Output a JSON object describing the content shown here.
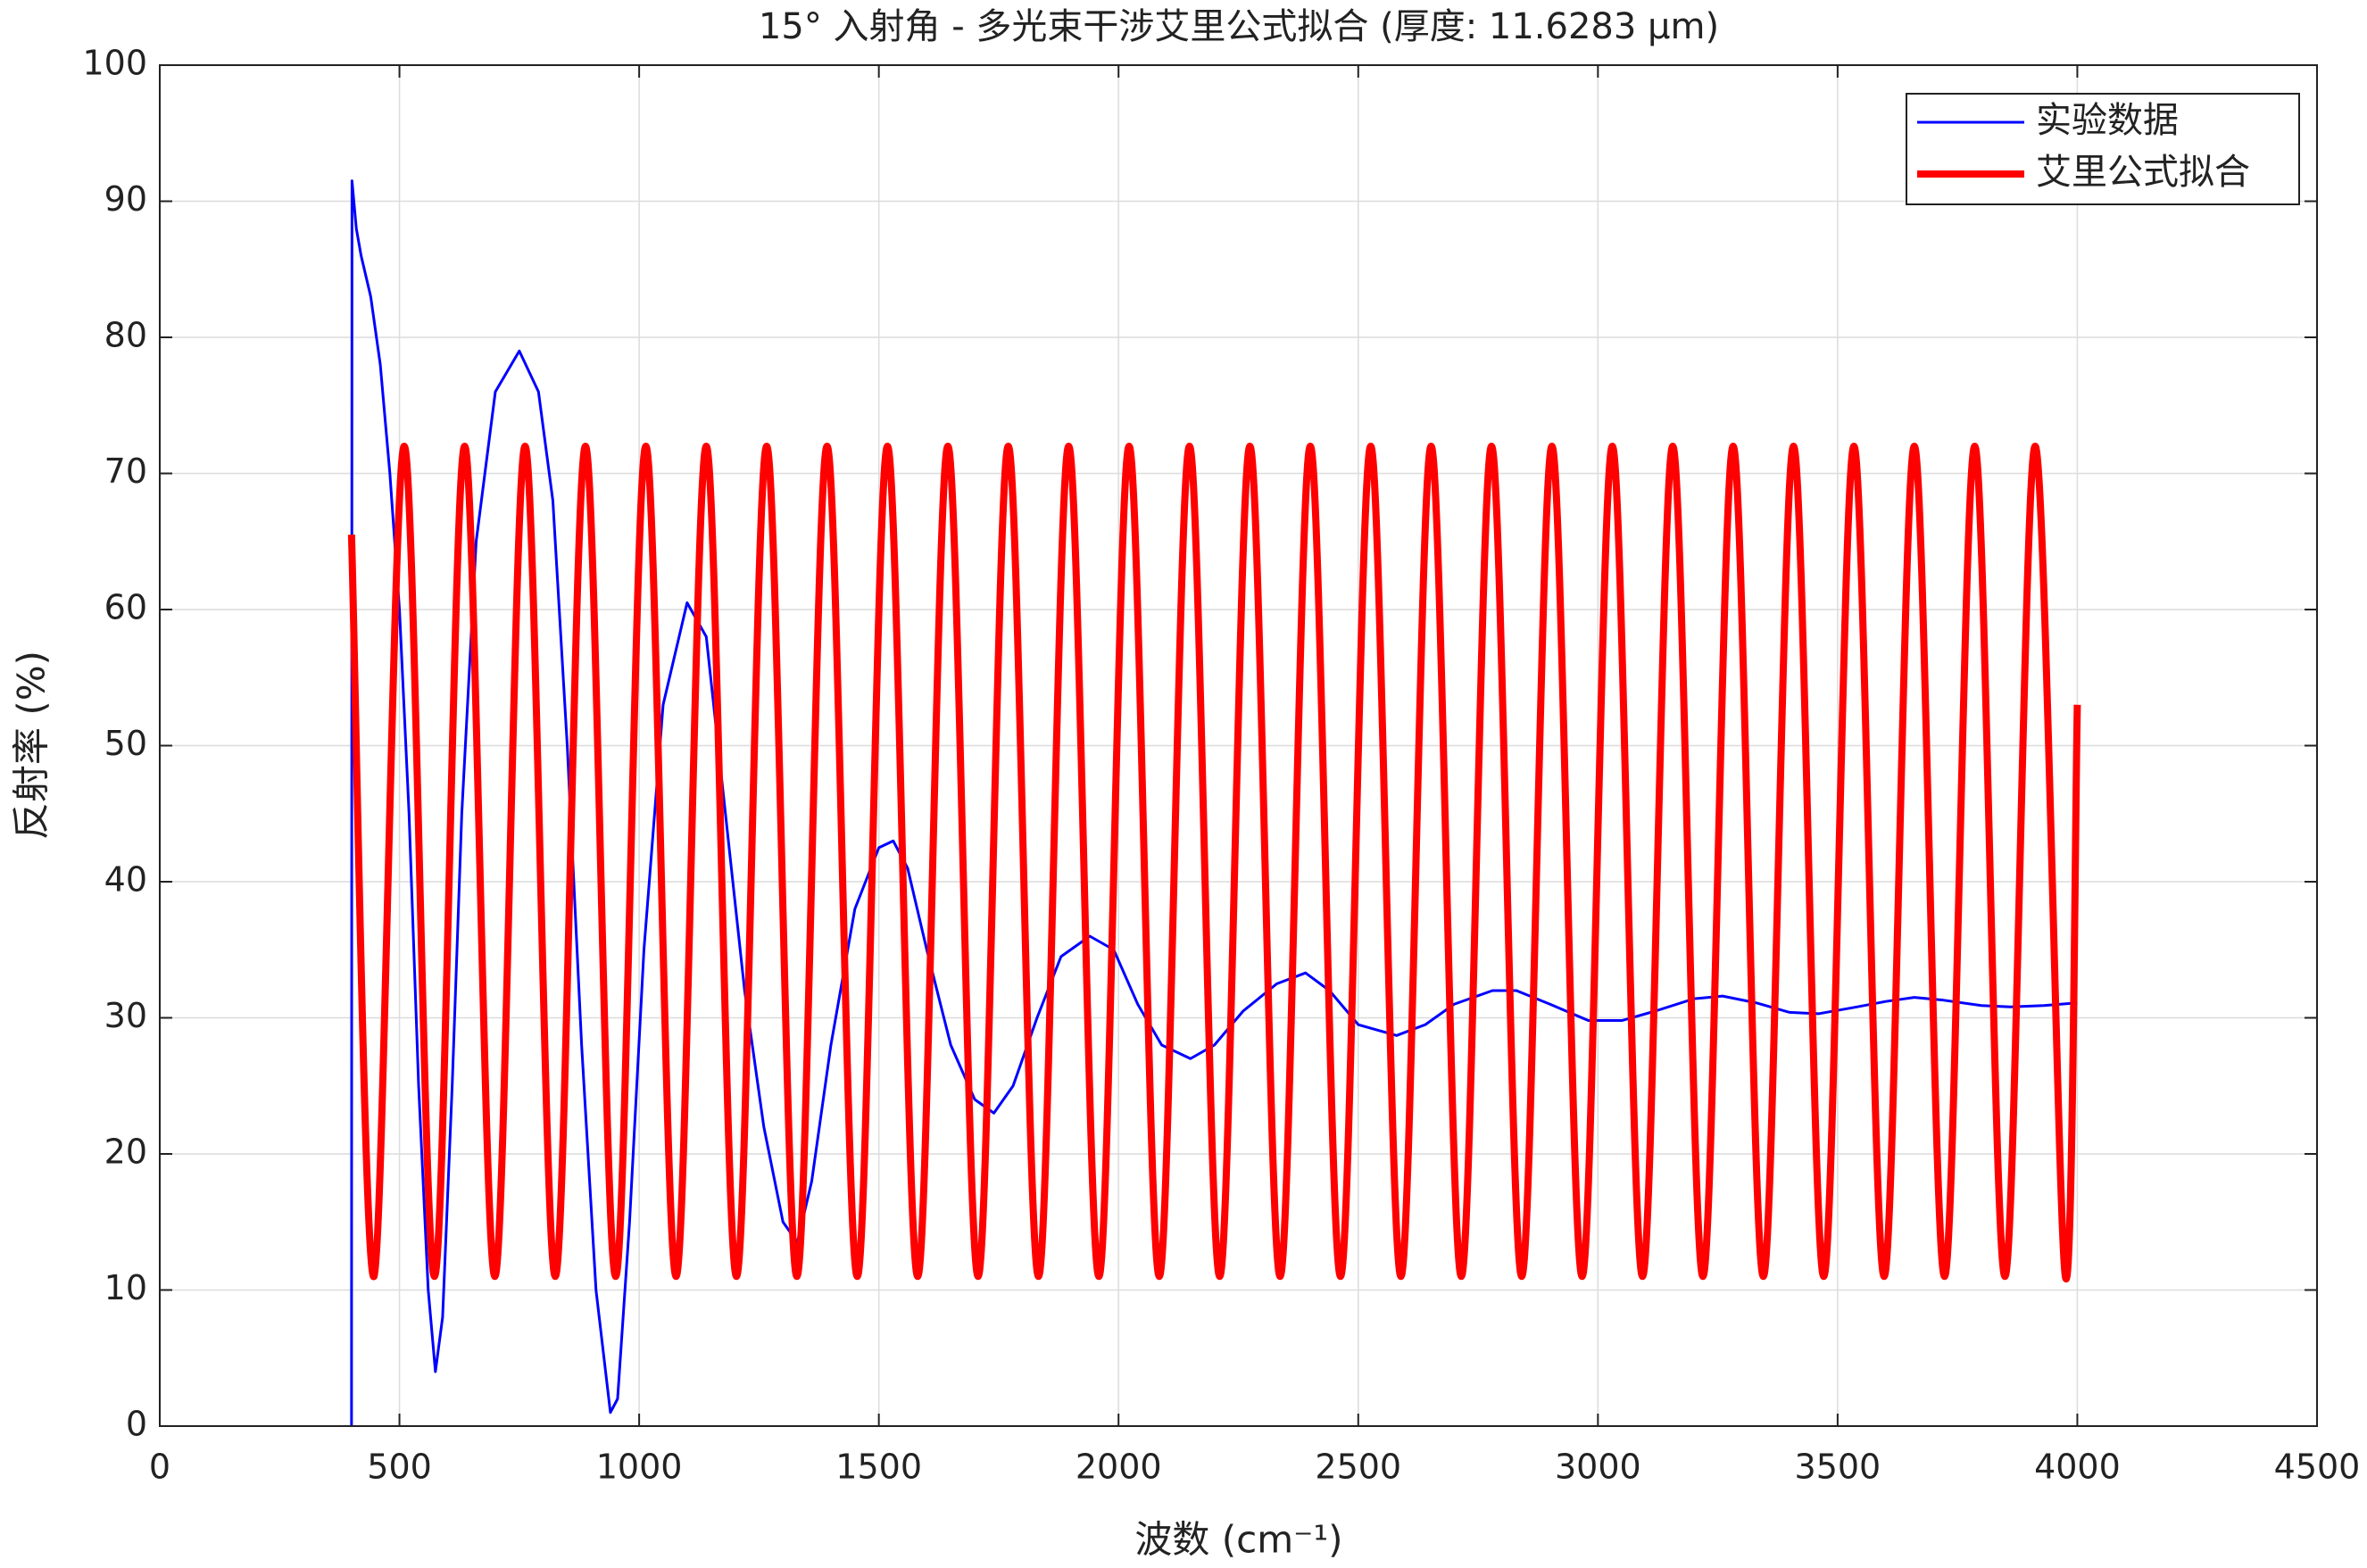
{
  "chart_data": {
    "type": "line",
    "title": "15° 入射角 - 多光束干涉艾里公式拟合 (厚度: 11.6283 μm)",
    "x_label": "波数 (cm⁻¹)",
    "y_label": "反射率 (%)",
    "xlim": [
      0,
      4500
    ],
    "xticks": [
      0,
      500,
      1000,
      1500,
      2000,
      2500,
      3000,
      3500,
      4000,
      4500
    ],
    "ylim": [
      0,
      100
    ],
    "yticks": [
      0,
      10,
      20,
      30,
      40,
      50,
      60,
      70,
      80,
      90,
      100
    ],
    "grid": true,
    "legend_position": "upper right",
    "series": [
      {
        "name": "实验数据",
        "color": "#0000ff",
        "x": [
          400,
          401,
          410,
          420,
          440,
          460,
          480,
          500,
          520,
          540,
          560,
          575,
          590,
          610,
          630,
          660,
          700,
          750,
          790,
          820,
          850,
          880,
          910,
          940,
          955,
          980,
          1010,
          1050,
          1100,
          1140,
          1180,
          1220,
          1260,
          1300,
          1330,
          1360,
          1400,
          1450,
          1500,
          1530,
          1560,
          1600,
          1650,
          1700,
          1740,
          1780,
          1830,
          1880,
          1940,
          1990,
          2040,
          2090,
          2150,
          2200,
          2260,
          2330,
          2390,
          2440,
          2500,
          2580,
          2640,
          2700,
          2780,
          2830,
          2900,
          2980,
          3050,
          3120,
          3200,
          3260,
          3330,
          3400,
          3460,
          3540,
          3600,
          3660,
          3720,
          3800,
          3860,
          3930,
          4000
        ],
        "values": [
          0,
          91.5,
          88,
          86,
          83,
          78,
          70,
          60,
          45,
          25,
          10,
          4,
          8,
          25,
          45,
          65,
          76,
          79,
          76,
          68,
          50,
          28,
          10,
          1,
          2,
          15,
          35,
          53,
          60.5,
          58,
          45,
          32,
          22,
          15,
          13.5,
          18,
          28,
          38,
          42.5,
          43,
          41,
          35,
          28,
          24,
          23,
          25,
          30,
          34.5,
          36,
          35,
          31,
          28,
          27,
          28,
          30.5,
          32.5,
          33.3,
          32,
          29.5,
          28.7,
          29.5,
          31,
          32,
          32,
          31,
          29.8,
          29.8,
          30.5,
          31.4,
          31.6,
          31.1,
          30.4,
          30.3,
          30.8,
          31.2,
          31.5,
          31.3,
          30.9,
          30.8,
          30.9,
          31.1
        ]
      },
      {
        "name": "艾里公式拟合",
        "color": "#ff0000",
        "x": [
          400,
          447,
          510,
          573,
          636,
          699,
          762,
          825,
          888,
          951,
          1014,
          1077,
          1140,
          1203,
          1266,
          1329,
          1392,
          1455,
          1518,
          1581,
          1644,
          1707,
          1770,
          1833,
          1896,
          1959,
          2022,
          2085,
          2148,
          2211,
          2274,
          2337,
          2400,
          2463,
          2526,
          2589,
          2652,
          2715,
          2778,
          2841,
          2904,
          2967,
          3030,
          3093,
          3156,
          3219,
          3282,
          3345,
          3408,
          3471,
          3534,
          3597,
          3660,
          3723,
          3786,
          3849,
          3912,
          3975,
          4000
        ],
        "values": [
          65.5,
          11,
          72,
          11,
          72,
          11,
          72,
          11,
          72,
          11,
          72,
          11,
          72,
          11,
          72,
          11,
          72,
          11,
          72,
          11,
          72,
          11,
          72,
          11,
          72,
          11,
          72,
          11,
          72,
          11,
          72,
          11,
          72,
          11,
          72,
          11,
          72,
          11,
          72,
          11,
          72,
          11,
          72,
          11,
          72,
          11,
          72,
          11,
          72,
          11,
          72,
          11,
          72,
          11,
          72,
          11,
          72,
          11,
          53
        ]
      }
    ]
  }
}
